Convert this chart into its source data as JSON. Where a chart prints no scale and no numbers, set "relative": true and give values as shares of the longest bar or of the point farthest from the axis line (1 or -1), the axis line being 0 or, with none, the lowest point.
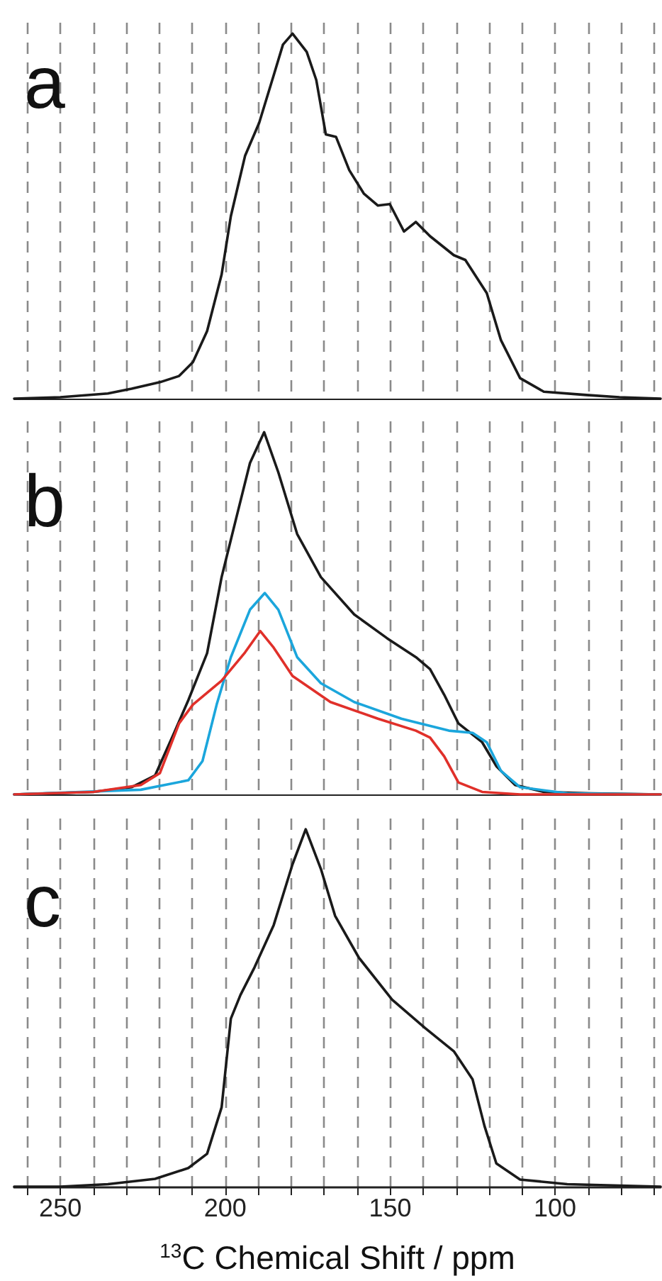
{
  "chart_data": [
    {
      "type": "line",
      "title": "a",
      "relative": true,
      "grid": "x",
      "tick_labels": false,
      "marker": "none",
      "line_style": "solid",
      "xlim": [
        264,
        68
      ],
      "xticks": [
        {
          "value": 260,
          "label": null
        },
        {
          "value": 250,
          "label": null
        },
        {
          "value": 240,
          "label": null
        },
        {
          "value": 230,
          "label": null
        },
        {
          "value": 220,
          "label": null
        },
        {
          "value": 210,
          "label": null
        },
        {
          "value": 200,
          "label": null
        },
        {
          "value": 190,
          "label": null
        },
        {
          "value": 180,
          "label": null
        },
        {
          "value": 170,
          "label": null
        },
        {
          "value": 160,
          "label": null
        },
        {
          "value": 150,
          "label": null
        },
        {
          "value": 140,
          "label": null
        },
        {
          "value": 130,
          "label": null
        },
        {
          "value": 120,
          "label": null
        },
        {
          "value": 110,
          "label": null
        },
        {
          "value": 100,
          "label": null
        },
        {
          "value": 90,
          "label": null
        },
        {
          "value": 80,
          "label": null
        },
        {
          "value": 70,
          "label": null
        }
      ],
      "series": [
        {
          "color": "#1a1a1a",
          "x": [
            264,
            250,
            235.6,
            228.4,
            219.8,
            214,
            209.8,
            205.5,
            201.1,
            198.3,
            194,
            189.7,
            185.3,
            182.5,
            179.6,
            175.3,
            172.4,
            169.5,
            166.4,
            162.4,
            158,
            153.7,
            150.1,
            145.8,
            142.2,
            137.9,
            130.7,
            127.2,
            120.7,
            116.4,
            110.6,
            103.4,
            90.5,
            80.5,
            68
          ],
          "values": [
            0,
            0.004,
            0.014,
            0.027,
            0.045,
            0.062,
            0.1,
            0.185,
            0.34,
            0.5,
            0.665,
            0.756,
            0.886,
            0.97,
            1,
            0.95,
            0.873,
            0.724,
            0.717,
            0.626,
            0.562,
            0.529,
            0.533,
            0.458,
            0.484,
            0.445,
            0.393,
            0.38,
            0.289,
            0.16,
            0.056,
            0.019,
            0.01,
            0.004,
            0
          ]
        }
      ]
    },
    {
      "type": "line",
      "title": "b",
      "relative": true,
      "grid": "x",
      "tick_labels": false,
      "marker": "none",
      "line_style": "solid",
      "xlim": [
        264,
        68
      ],
      "xticks": [
        {
          "value": 260,
          "label": null
        },
        {
          "value": 250,
          "label": null
        },
        {
          "value": 240,
          "label": null
        },
        {
          "value": 230,
          "label": null
        },
        {
          "value": 220,
          "label": null
        },
        {
          "value": 210,
          "label": null
        },
        {
          "value": 200,
          "label": null
        },
        {
          "value": 190,
          "label": null
        },
        {
          "value": 180,
          "label": null
        },
        {
          "value": 170,
          "label": null
        },
        {
          "value": 160,
          "label": null
        },
        {
          "value": 150,
          "label": null
        },
        {
          "value": 140,
          "label": null
        },
        {
          "value": 130,
          "label": null
        },
        {
          "value": 120,
          "label": null
        },
        {
          "value": 110,
          "label": null
        },
        {
          "value": 100,
          "label": null
        },
        {
          "value": 90,
          "label": null
        },
        {
          "value": 80,
          "label": null
        },
        {
          "value": 70,
          "label": null
        }
      ],
      "series": [
        {
          "color": "#1a1a1a",
          "x": [
            264,
            240,
            228.4,
            221.3,
            215.5,
            211.2,
            205.5,
            201.1,
            196.8,
            192.5,
            188.2,
            183.9,
            178.2,
            171,
            160.9,
            150.9,
            142.2,
            137.9,
            133.6,
            129.3,
            122.1,
            117.8,
            112.1,
            103.4,
            89,
            68
          ],
          "values": [
            0,
            0.007,
            0.02,
            0.052,
            0.17,
            0.26,
            0.39,
            0.6,
            0.758,
            0.915,
            1,
            0.889,
            0.719,
            0.6,
            0.497,
            0.431,
            0.379,
            0.346,
            0.275,
            0.196,
            0.144,
            0.078,
            0.026,
            0.007,
            0.003,
            0
          ]
        },
        {
          "color": "#1ba6dc",
          "x": [
            264,
            225.6,
            211.2,
            206.9,
            202.6,
            198.3,
            192.5,
            188,
            183.9,
            178.2,
            171,
            160.9,
            146.6,
            132.2,
            125,
            120.7,
            116.4,
            110.6,
            96.3,
            68
          ],
          "values": [
            0,
            0.013,
            0.039,
            0.092,
            0.248,
            0.379,
            0.51,
            0.556,
            0.51,
            0.379,
            0.307,
            0.255,
            0.209,
            0.176,
            0.17,
            0.144,
            0.065,
            0.02,
            0.003,
            0
          ]
        },
        {
          "color": "#e0302a",
          "x": [
            264,
            240,
            225.6,
            219.8,
            214,
            209.8,
            201.1,
            194,
            189.4,
            185.3,
            179.6,
            168.1,
            153.7,
            142.2,
            137.9,
            133.6,
            129.3,
            122.1,
            110.6,
            68
          ],
          "values": [
            0,
            0.007,
            0.026,
            0.059,
            0.196,
            0.248,
            0.314,
            0.392,
            0.451,
            0.405,
            0.327,
            0.255,
            0.209,
            0.176,
            0.157,
            0.105,
            0.033,
            0.007,
            0,
            0
          ]
        }
      ]
    },
    {
      "type": "line",
      "title": "c",
      "relative": true,
      "grid": "x",
      "tick_labels": "x",
      "marker": "none",
      "line_style": "solid",
      "xlim": [
        264,
        68
      ],
      "xlabel": "$^{13}$C Chemical Shift / ppm",
      "xticks": [
        {
          "value": 260,
          "label": null
        },
        250,
        {
          "value": 240,
          "label": null
        },
        {
          "value": 230,
          "label": null
        },
        {
          "value": 220,
          "label": null
        },
        {
          "value": 210,
          "label": null
        },
        200,
        {
          "value": 190,
          "label": null
        },
        {
          "value": 180,
          "label": null
        },
        {
          "value": 170,
          "label": null
        },
        {
          "value": 160,
          "label": null
        },
        150,
        {
          "value": 140,
          "label": null
        },
        {
          "value": 130,
          "label": null
        },
        {
          "value": 120,
          "label": null
        },
        {
          "value": 110,
          "label": null
        },
        100,
        {
          "value": 90,
          "label": null
        },
        {
          "value": 80,
          "label": null
        },
        {
          "value": 70,
          "label": null
        }
      ],
      "series": [
        {
          "color": "#1a1a1a",
          "x": [
            264,
            250,
            235.6,
            221.3,
            211.2,
            205.5,
            201.1,
            198.3,
            195.4,
            191.1,
            185.3,
            179.6,
            175.6,
            171,
            166.7,
            159.5,
            149.4,
            139.4,
            130.7,
            125,
            121.4,
            117.8,
            110.6,
            96.3,
            68
          ],
          "values": [
            0,
            0,
            0.007,
            0.022,
            0.052,
            0.092,
            0.222,
            0.47,
            0.536,
            0.614,
            0.732,
            0.902,
            1,
            0.889,
            0.758,
            0.641,
            0.523,
            0.444,
            0.379,
            0.3,
            0.17,
            0.065,
            0.02,
            0.007,
            0
          ]
        }
      ]
    }
  ]
}
